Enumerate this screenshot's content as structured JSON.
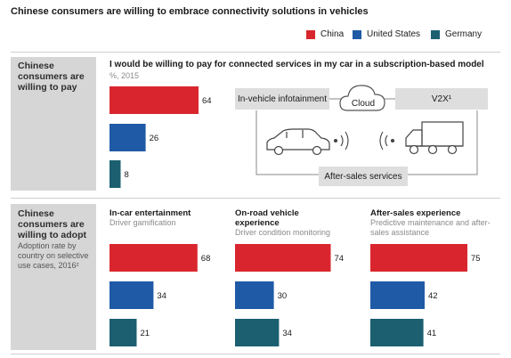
{
  "header": {
    "title": "Chinese consumers are willing to embrace connectivity solutions in vehicles"
  },
  "legend": [
    {
      "label": "China",
      "color": "#d9262e"
    },
    {
      "label": "United States",
      "color": "#1f5aa6"
    },
    {
      "label": "Germany",
      "color": "#1b5f71"
    }
  ],
  "pay_panel": {
    "title": "Chinese consumers are willing to pay",
    "question": "I would be willing to pay for connected services in my car in a subscription-based model",
    "unit": "%, 2015"
  },
  "adopt_panel": {
    "title": "Chinese consumers are willing to adopt",
    "subtitle": "Adoption rate by country on selective use cases, 2016²"
  },
  "diagram": {
    "infotainment": "In-vehicle infotainment",
    "cloud": "Cloud",
    "v2x": "V2X¹",
    "after_sales": "After-sales services",
    "icons": [
      "car-icon",
      "signal-waves-icon",
      "truck-icon",
      "cloud-icon"
    ]
  },
  "chart_data": [
    {
      "type": "bar",
      "orientation": "horizontal",
      "title": "I would be willing to pay for connected services in my car in a subscription-based model",
      "subtitle": "%, 2015",
      "categories": [
        "China",
        "United States",
        "Germany"
      ],
      "values": [
        64,
        26,
        8
      ],
      "xlim": [
        0,
        64
      ]
    },
    {
      "type": "bar",
      "orientation": "horizontal",
      "title": "In-car entertainment",
      "subtitle": "Driver gamification",
      "categories": [
        "China",
        "United States",
        "Germany"
      ],
      "values": [
        68,
        34,
        21
      ],
      "xlim": [
        0,
        75
      ]
    },
    {
      "type": "bar",
      "orientation": "horizontal",
      "title": "On-road vehicle experience",
      "subtitle": "Driver condition monitoring",
      "categories": [
        "China",
        "United States",
        "Germany"
      ],
      "values": [
        74,
        30,
        34
      ],
      "xlim": [
        0,
        75
      ]
    },
    {
      "type": "bar",
      "orientation": "horizontal",
      "title": "After-sales experience",
      "subtitle": "Predictive maintenance and after-sales assistance",
      "categories": [
        "China",
        "United States",
        "Germany"
      ],
      "values": [
        75,
        42,
        41
      ],
      "xlim": [
        0,
        75
      ]
    }
  ]
}
